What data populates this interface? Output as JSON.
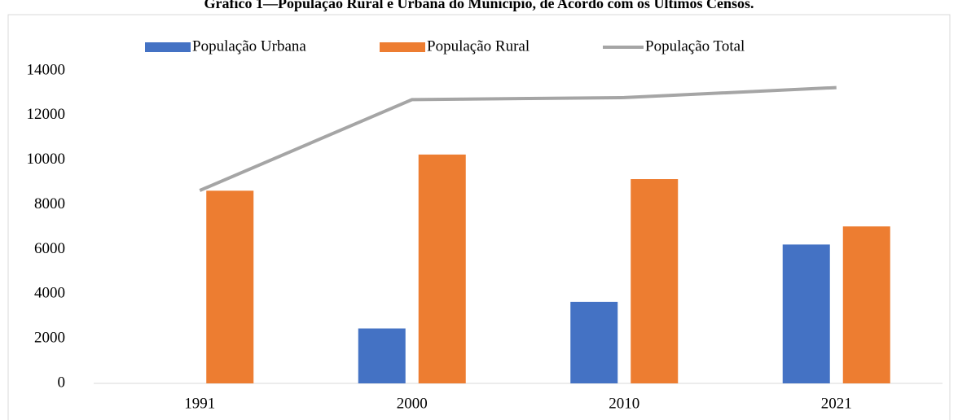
{
  "chart_data": {
    "type": "bar-line",
    "title": "Gráfico 1—População Rural e Urbana do Município, de Acordo com os Últimos Censos.",
    "categories": [
      "1991",
      "2000",
      "2010",
      "2021"
    ],
    "series": [
      {
        "name": "População Urbana",
        "color": "#4472c4",
        "type": "bar",
        "values": [
          0,
          2460,
          3650,
          6220
        ]
      },
      {
        "name": "População Rural",
        "color": "#ed7d31",
        "type": "bar",
        "values": [
          8630,
          10250,
          9150,
          7030
        ]
      },
      {
        "name": "População Total",
        "color": "#a5a5a5",
        "type": "line",
        "values": [
          8640,
          12710,
          12800,
          13250
        ]
      }
    ],
    "ylim": [
      0,
      14000
    ],
    "yticks": [
      0,
      2000,
      4000,
      6000,
      8000,
      10000,
      12000,
      14000
    ],
    "grid": false,
    "legend": "top"
  }
}
